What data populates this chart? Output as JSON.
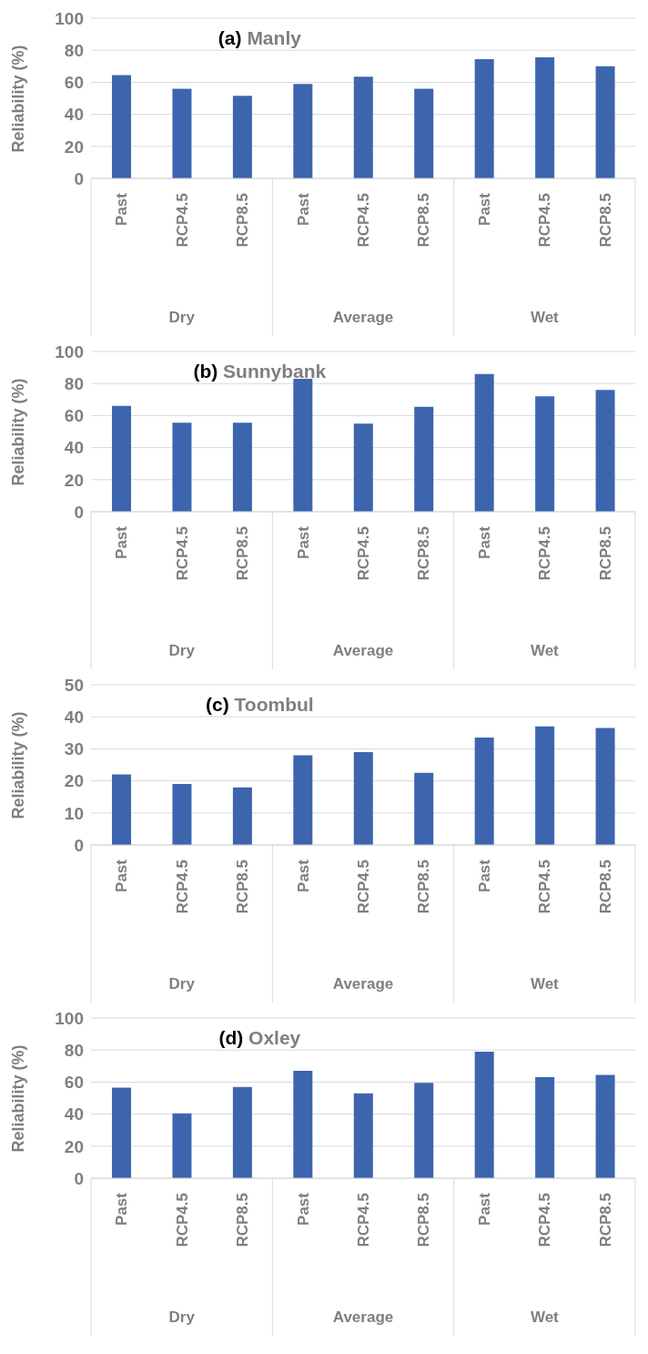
{
  "chart_data": [
    {
      "type": "bar",
      "title": "(a) Manly",
      "ylabel": "Reliability (%)",
      "categories": [
        "Past",
        "RCP4.5",
        "RCP8.5",
        "Past",
        "RCP4.5",
        "RCP8.5",
        "Past",
        "RCP4.5",
        "RCP8.5"
      ],
      "annotations": [
        "Dry",
        "Average",
        "Wet"
      ],
      "values": [
        64.5,
        56,
        51.5,
        59,
        63.5,
        56,
        74.5,
        75.5,
        70
      ],
      "color": "#3c65ae",
      "ylim": [
        0,
        100
      ],
      "yticks": [
        0,
        20,
        40,
        60,
        80,
        100
      ],
      "grid": "y",
      "legend": false
    },
    {
      "type": "bar",
      "title": "(b) Sunnybank",
      "ylabel": "Reliability (%)",
      "categories": [
        "Past",
        "RCP4.5",
        "RCP8.5",
        "Past",
        "RCP4.5",
        "RCP8.5",
        "Past",
        "RCP4.5",
        "RCP8.5"
      ],
      "annotations": [
        "Dry",
        "Average",
        "Wet"
      ],
      "values": [
        66,
        55.5,
        55.5,
        83,
        55,
        65.5,
        86,
        72,
        76
      ],
      "color": "#3c65ae",
      "ylim": [
        0,
        100
      ],
      "yticks": [
        0,
        20,
        40,
        60,
        80,
        100
      ],
      "grid": "y",
      "legend": false
    },
    {
      "type": "bar",
      "title": "(c) Toombul",
      "ylabel": "Reliability (%)",
      "categories": [
        "Past",
        "RCP4.5",
        "RCP8.5",
        "Past",
        "RCP4.5",
        "RCP8.5",
        "Past",
        "RCP4.5",
        "RCP8.5"
      ],
      "annotations": [
        "Dry",
        "Average",
        "Wet"
      ],
      "values": [
        22,
        19,
        18,
        28,
        29,
        22.5,
        33.5,
        37,
        36.5
      ],
      "color": "#3c65ae",
      "ylim": [
        0,
        50
      ],
      "yticks": [
        0,
        10,
        20,
        30,
        40,
        50
      ],
      "grid": "y",
      "legend": false
    },
    {
      "type": "bar",
      "title": "(d) Oxley",
      "ylabel": "Reliability (%)",
      "categories": [
        "Past",
        "RCP4.5",
        "RCP8.5",
        "Past",
        "RCP4.5",
        "RCP8.5",
        "Past",
        "RCP4.5",
        "RCP8.5"
      ],
      "annotations": [
        "Dry",
        "Average",
        "Wet"
      ],
      "values": [
        56.5,
        40.5,
        57,
        67,
        53,
        59.5,
        79,
        63,
        64.5
      ],
      "color": "#3c65ae",
      "ylim": [
        0,
        100
      ],
      "yticks": [
        0,
        20,
        40,
        60,
        80,
        100
      ],
      "grid": "y",
      "legend": false
    }
  ]
}
